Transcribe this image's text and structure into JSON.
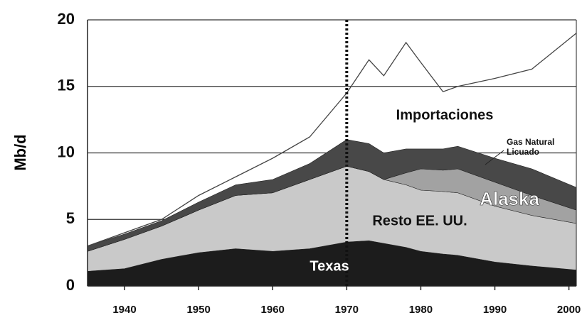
{
  "chart_data": {
    "type": "stacked_area",
    "ylabel": "Mb/d",
    "x": [
      1935,
      1940,
      1945,
      1950,
      1955,
      1960,
      1965,
      1970,
      1973,
      1975,
      1978,
      1980,
      1983,
      1985,
      1990,
      1995,
      2001
    ],
    "series": [
      {
        "name": "Texas",
        "color": "#1c1c1c",
        "values": [
          1.1,
          1.3,
          2.0,
          2.5,
          2.8,
          2.6,
          2.8,
          3.3,
          3.4,
          3.2,
          2.9,
          2.6,
          2.4,
          2.3,
          1.8,
          1.5,
          1.2
        ]
      },
      {
        "name": "Resto EE. UU.",
        "color": "#c9c9c9",
        "values": [
          1.5,
          2.2,
          2.5,
          3.2,
          4.0,
          4.4,
          5.2,
          5.7,
          5.2,
          4.8,
          4.7,
          4.6,
          4.7,
          4.7,
          4.2,
          3.8,
          3.5
        ]
      },
      {
        "name": "Alaska",
        "color": "#a2a2a2",
        "values": [
          0,
          0,
          0,
          0,
          0,
          0,
          0,
          0,
          0,
          0,
          0.9,
          1.6,
          1.6,
          1.8,
          1.8,
          1.5,
          1.0
        ]
      },
      {
        "name": "Gas Natural Licuado",
        "color": "#484848",
        "values": [
          0.4,
          0.4,
          0.4,
          0.6,
          0.8,
          1.0,
          1.2,
          2.0,
          2.1,
          2.0,
          1.8,
          1.5,
          1.6,
          1.7,
          1.8,
          2.0,
          1.7
        ]
      },
      {
        "name": "Importaciones",
        "color": "#ffffff",
        "values": [
          0,
          0.1,
          0.1,
          0.5,
          0.6,
          1.6,
          2.0,
          3.5,
          6.3,
          5.8,
          8.0,
          6.5,
          4.3,
          4.5,
          6.0,
          7.5,
          11.6
        ]
      }
    ],
    "vline_x": 1970,
    "xlim": [
      1935,
      2001
    ],
    "xticks": [
      1940,
      1950,
      1960,
      1970,
      1980,
      1990,
      2000
    ],
    "ylim": [
      0,
      20
    ],
    "yticks": [
      0,
      5,
      10,
      15,
      20
    ],
    "grid": true
  }
}
